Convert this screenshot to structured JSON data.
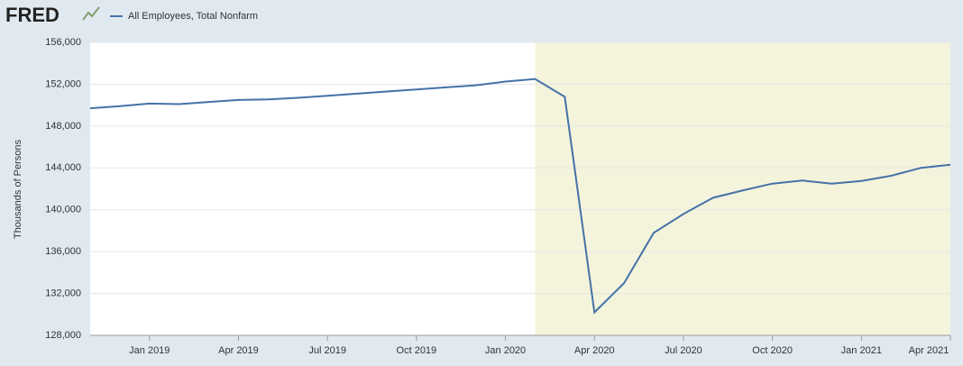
{
  "logo": "FRED",
  "chart_data": {
    "type": "line",
    "y_label": "Thousands of Persons",
    "x": [
      "2018-11",
      "2018-12",
      "2019-01",
      "2019-02",
      "2019-03",
      "2019-04",
      "2019-05",
      "2019-06",
      "2019-07",
      "2019-08",
      "2019-09",
      "2019-10",
      "2019-11",
      "2019-12",
      "2020-01",
      "2020-02",
      "2020-03",
      "2020-04",
      "2020-05",
      "2020-06",
      "2020-07",
      "2020-08",
      "2020-09",
      "2020-10",
      "2020-11",
      "2020-12",
      "2021-01",
      "2021-02",
      "2021-03",
      "2021-04"
    ],
    "series": [
      {
        "name": "All Employees, Total Nonfarm",
        "color": "#4572a7",
        "values": [
          149700,
          149900,
          150150,
          150100,
          150300,
          150500,
          150550,
          150700,
          150900,
          151100,
          151300,
          151500,
          151700,
          151900,
          152250,
          152500,
          150800,
          130200,
          133000,
          137800,
          139600,
          141150,
          141850,
          142500,
          142800,
          142500,
          142750,
          143250,
          144000,
          144300
        ]
      }
    ],
    "xlim": [
      "2018-11",
      "2021-04"
    ],
    "xticks": [
      {
        "value": "2019-01",
        "label": "Jan 2019"
      },
      {
        "value": "2019-04",
        "label": "Apr 2019"
      },
      {
        "value": "2019-07",
        "label": "Jul 2019"
      },
      {
        "value": "2019-10",
        "label": "Oct 2019"
      },
      {
        "value": "2020-01",
        "label": "Jan 2020"
      },
      {
        "value": "2020-04",
        "label": "Apr 2020"
      },
      {
        "value": "2020-07",
        "label": "Jul 2020"
      },
      {
        "value": "2020-10",
        "label": "Oct 2020"
      },
      {
        "value": "2021-01",
        "label": "Jan 2021"
      },
      {
        "value": "2021-04",
        "label": "Apr 2021"
      }
    ],
    "ylim": [
      128000,
      156000
    ],
    "yticks": [
      {
        "value": 128000,
        "label": "128,000"
      },
      {
        "value": 132000,
        "label": "132,000"
      },
      {
        "value": 136000,
        "label": "136,000"
      },
      {
        "value": 140000,
        "label": "140,000"
      },
      {
        "value": 144000,
        "label": "144,000"
      },
      {
        "value": 148000,
        "label": "148,000"
      },
      {
        "value": 152000,
        "label": "152,000"
      },
      {
        "value": 156000,
        "label": "156,000"
      }
    ],
    "grid": true,
    "shading": {
      "start": "2020-02",
      "end": "2021-04",
      "color": "#f4f4dc"
    }
  }
}
